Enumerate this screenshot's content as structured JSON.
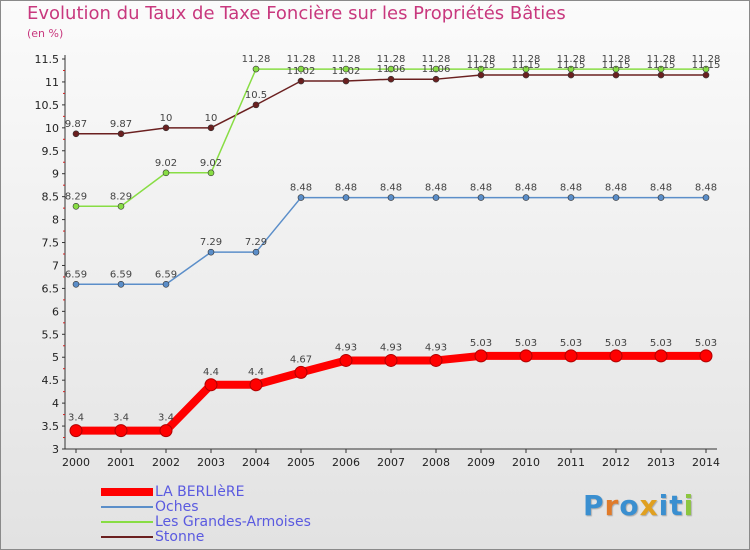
{
  "chart_data": {
    "type": "line",
    "title": "Evolution du Taux de Taxe Foncière sur les Propriétés Bâties",
    "ylabel": "(en %)",
    "xlabel": "",
    "ylim": [
      3,
      11.5
    ],
    "yticks": [
      "3",
      "3.5",
      "4",
      "4.5",
      "5",
      "5.5",
      "6",
      "6.5",
      "7",
      "7.5",
      "8",
      "8.5",
      "9",
      "9.5",
      "10",
      "10.5",
      "11",
      "11.5"
    ],
    "x": [
      "2000",
      "2001",
      "2002",
      "2003",
      "2004",
      "2005",
      "2006",
      "2007",
      "2008",
      "2009",
      "2010",
      "2011",
      "2012",
      "2013",
      "2014"
    ],
    "grid": false,
    "legend_position": "bottom-left",
    "series": [
      {
        "name": "LA BERLIèRE",
        "color": "#ff0000",
        "values": [
          3.4,
          3.4,
          3.4,
          4.4,
          4.4,
          4.67,
          4.93,
          4.93,
          4.93,
          5.03,
          5.03,
          5.03,
          5.03,
          5.03,
          5.03
        ]
      },
      {
        "name": "Oches",
        "color": "#5b8ec9",
        "values": [
          6.59,
          6.59,
          6.59,
          7.29,
          7.29,
          8.48,
          8.48,
          8.48,
          8.48,
          8.48,
          8.48,
          8.48,
          8.48,
          8.48,
          8.48
        ]
      },
      {
        "name": "Les Grandes-Armoises",
        "color": "#88dd44",
        "values": [
          8.29,
          8.29,
          9.02,
          9.02,
          11.28,
          11.28,
          11.28,
          11.28,
          11.28,
          11.28,
          11.28,
          11.28,
          11.28,
          11.28,
          11.28
        ]
      },
      {
        "name": "Stonne",
        "color": "#6b2020",
        "values": [
          9.87,
          9.87,
          10,
          10,
          10.5,
          11.02,
          11.02,
          11.06,
          11.06,
          11.15,
          11.15,
          11.15,
          11.15,
          11.15,
          11.15
        ]
      }
    ],
    "data_labels": [
      [
        "3.4",
        "3.4",
        "3.4",
        "4.4",
        "4.4",
        "4.67",
        "4.93",
        "4.93",
        "4.93",
        "5.03",
        "5.03",
        "5.03",
        "5.03",
        "5.03",
        "5.03"
      ],
      [
        "6.59",
        "6.59",
        "6.59",
        "7.29",
        "7.29",
        "8.48",
        "8.48",
        "8.48",
        "8.48",
        "8.48",
        "8.48",
        "8.48",
        "8.48",
        "8.48",
        "8.48"
      ],
      [
        "8.29",
        "8.29",
        "9.02",
        "9.02",
        "11.28",
        "11.28",
        "11.28",
        "11.28",
        "11.28",
        "11.28",
        "11.28",
        "11.28",
        "11.28",
        "11.28",
        "11.28"
      ],
      [
        "9.87",
        "9.87",
        "10",
        "10",
        "10.5",
        "11.02",
        "11.02",
        "11.06",
        "11.06",
        "11.15",
        "11.15",
        "11.15",
        "11.15",
        "11.15",
        "11.15"
      ]
    ]
  },
  "brand": {
    "letters": [
      "P",
      "r",
      "o",
      "x",
      "i",
      "t",
      "i"
    ],
    "colors": [
      "#3a8fd0",
      "#e07b2a",
      "#3a8fd0",
      "#e0a020",
      "#3a8fd0",
      "#3a8fd0",
      "#8cc63f"
    ]
  }
}
